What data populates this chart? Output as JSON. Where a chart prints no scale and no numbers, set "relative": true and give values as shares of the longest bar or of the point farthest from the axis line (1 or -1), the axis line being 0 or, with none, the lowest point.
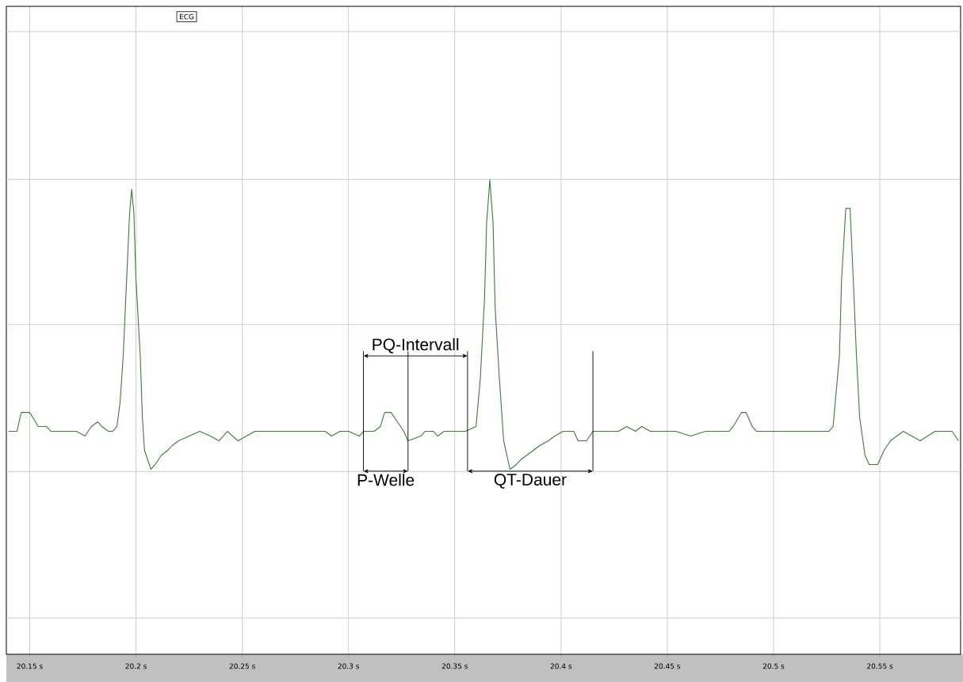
{
  "chart_data": {
    "type": "line",
    "relative": true,
    "grid": true,
    "xlim": [
      20.139,
      20.588
    ],
    "xticks": [
      {
        "value": 20.15,
        "label": "20.15 s"
      },
      {
        "value": 20.2,
        "label": "20.2 s"
      },
      {
        "value": 20.25,
        "label": "20.25 s"
      },
      {
        "value": 20.3,
        "label": "20.3 s"
      },
      {
        "value": 20.35,
        "label": "20.35 s"
      },
      {
        "value": 20.4,
        "label": "20.4 s"
      },
      {
        "value": 20.45,
        "label": "20.45 s"
      },
      {
        "value": 20.5,
        "label": "20.5 s"
      },
      {
        "value": 20.55,
        "label": "20.55 s"
      }
    ],
    "series": [
      {
        "color": "#3c7d3c",
        "x": [
          20.14,
          20.144,
          20.146,
          20.15,
          20.154,
          20.158,
          20.16,
          20.166,
          20.172,
          20.176,
          20.179,
          20.182,
          20.184,
          20.187,
          20.189,
          20.191,
          20.1925,
          20.194,
          20.1955,
          20.197,
          20.198,
          20.199,
          20.2,
          20.202,
          20.203,
          20.204,
          20.207,
          20.209,
          20.212,
          20.215,
          20.217,
          20.22,
          20.225,
          20.23,
          20.235,
          20.239,
          20.243,
          20.248,
          20.256,
          20.26,
          20.263,
          20.267,
          20.273,
          20.278,
          20.284,
          20.289,
          20.292,
          20.296,
          20.3,
          20.305,
          20.307,
          20.312,
          20.315,
          20.317,
          20.32,
          20.323,
          20.326,
          20.328,
          20.334,
          20.336,
          20.34,
          20.342,
          20.345,
          20.35,
          20.355,
          20.36,
          20.362,
          20.364,
          20.365,
          20.3665,
          20.368,
          20.369,
          20.371,
          20.373,
          20.376,
          20.379,
          20.381,
          20.384,
          20.387,
          20.39,
          20.394,
          20.397,
          20.401,
          20.406,
          20.408,
          20.412,
          20.415,
          20.42,
          20.427,
          20.431,
          20.435,
          20.438,
          20.442,
          20.446,
          20.448,
          20.454,
          20.461,
          20.468,
          20.476,
          20.479,
          20.481,
          20.485,
          20.487,
          20.49,
          20.492,
          20.5,
          20.509,
          20.5185,
          20.526,
          20.528,
          20.529,
          20.531,
          20.532,
          20.534,
          20.536,
          20.5375,
          20.539,
          20.5405,
          20.543,
          20.545,
          20.547,
          20.549,
          20.552,
          20.555,
          20.558,
          20.561,
          20.569,
          20.576,
          20.584,
          20.587
        ],
        "values": [
          0.47,
          0.47,
          0.51,
          0.51,
          0.48,
          0.48,
          0.47,
          0.47,
          0.47,
          0.46,
          0.48,
          0.49,
          0.48,
          0.47,
          0.47,
          0.48,
          0.53,
          0.63,
          0.78,
          0.93,
          0.98,
          0.93,
          0.79,
          0.63,
          0.5,
          0.43,
          0.39,
          0.4,
          0.42,
          0.43,
          0.44,
          0.45,
          0.46,
          0.47,
          0.46,
          0.45,
          0.47,
          0.45,
          0.47,
          0.47,
          0.47,
          0.47,
          0.47,
          0.47,
          0.47,
          0.47,
          0.46,
          0.47,
          0.47,
          0.46,
          0.47,
          0.47,
          0.48,
          0.51,
          0.51,
          0.49,
          0.47,
          0.45,
          0.46,
          0.47,
          0.47,
          0.46,
          0.47,
          0.47,
          0.47,
          0.48,
          0.58,
          0.75,
          0.91,
          1,
          0.91,
          0.73,
          0.58,
          0.45,
          0.39,
          0.4,
          0.41,
          0.42,
          0.43,
          0.44,
          0.45,
          0.46,
          0.47,
          0.47,
          0.45,
          0.45,
          0.47,
          0.47,
          0.47,
          0.48,
          0.47,
          0.48,
          0.47,
          0.47,
          0.47,
          0.47,
          0.46,
          0.47,
          0.47,
          0.47,
          0.48,
          0.51,
          0.51,
          0.48,
          0.47,
          0.47,
          0.47,
          0.47,
          0.47,
          0.48,
          0.53,
          0.63,
          0.79,
          0.94,
          0.94,
          0.79,
          0.63,
          0.5,
          0.42,
          0.4,
          0.4,
          0.4,
          0.43,
          0.45,
          0.46,
          0.47,
          0.45,
          0.47,
          0.47,
          0.45
        ]
      }
    ],
    "ref_lines": [
      {
        "axis": "x",
        "value": 20.307
      },
      {
        "axis": "x",
        "value": 20.328
      },
      {
        "axis": "x",
        "value": 20.356
      },
      {
        "axis": "x",
        "value": 20.415
      }
    ],
    "annotations": [
      "ECG",
      "PQ-Intervall",
      "P-Welle",
      "QT-Dauer"
    ]
  }
}
